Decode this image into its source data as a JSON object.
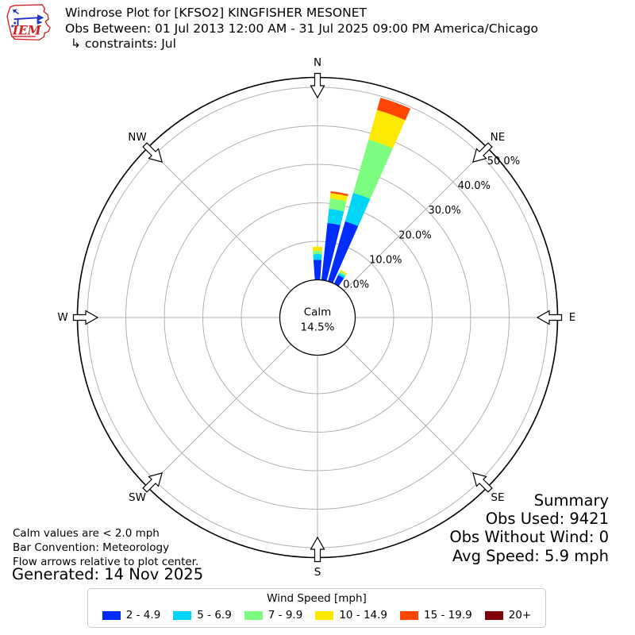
{
  "header": {
    "title": "Windrose Plot for [KFSO2] KINGFISHER MESONET",
    "subtitle": "Obs Between: 01 Jul 2013 12:00 AM - 31 Jul 2025 09:00 PM America/Chicago",
    "constraints": "↳ constraints: Jul",
    "logo_text": "IEM"
  },
  "chart_data": {
    "type": "windrose",
    "station": "[KFSO2] KINGFISHER MESONET",
    "units": "mph",
    "calm_label": "Calm",
    "calm_value_label": "14.5%",
    "calm_percent": 14.5,
    "compass_labels": [
      "N",
      "NE",
      "E",
      "SE",
      "S",
      "SW",
      "W",
      "NW"
    ],
    "rings": [
      {
        "pct": 0,
        "label": "0.0%"
      },
      {
        "pct": 10,
        "label": "10.0%"
      },
      {
        "pct": 20,
        "label": "20.0%"
      },
      {
        "pct": 30,
        "label": "30.0%"
      },
      {
        "pct": 40,
        "label": "40.0%"
      },
      {
        "pct": 50,
        "label": "50.0%"
      }
    ],
    "speed_bins": [
      {
        "label": "2 - 4.9",
        "color": "#012cff"
      },
      {
        "label": "5 - 6.9",
        "color": "#00d5f7"
      },
      {
        "label": "7 - 9.9",
        "color": "#7cfd7f"
      },
      {
        "label": "10 - 14.9",
        "color": "#fde801"
      },
      {
        "label": "15 - 19.9",
        "color": "#ff4503"
      },
      {
        "label": "20+",
        "color": "#7e0308"
      }
    ],
    "bar_width_deg": 8,
    "bars": [
      {
        "direction_deg": 0,
        "values": [
          5.2,
          1.5,
          0.8,
          1.1,
          0,
          0
        ],
        "total_pct": 8.6
      },
      {
        "direction_deg": 10,
        "values": [
          14.9,
          3.7,
          2.7,
          1.4,
          0.5,
          0
        ],
        "total_pct": 23.2
      },
      {
        "direction_deg": 20,
        "values": [
          16.2,
          7.7,
          14.4,
          8.0,
          3.3,
          0
        ],
        "total_pct": 49.6
      },
      {
        "direction_deg": 30,
        "values": [
          2.5,
          0.6,
          0.5,
          0.4,
          0,
          0
        ],
        "total_pct": 4.0
      }
    ]
  },
  "notes": {
    "calm": "Calm values are < 2.0 mph",
    "convention": "Bar Convention: Meteorology",
    "arrows": "Flow arrows relative to plot center.",
    "generated": "Generated: 14 Nov 2025"
  },
  "summary": {
    "title": "Summary",
    "obs_used": "Obs Used: 9421",
    "obs_without_wind": "Obs Without Wind: 0",
    "avg_speed": "Avg Speed: 5.9 mph"
  },
  "legend": {
    "title": "Wind Speed [mph]"
  },
  "colors": {
    "grid": "#b0b0b0",
    "outline": "#000000",
    "logo_red": "#cc2222",
    "logo_blue": "#2233cc"
  }
}
